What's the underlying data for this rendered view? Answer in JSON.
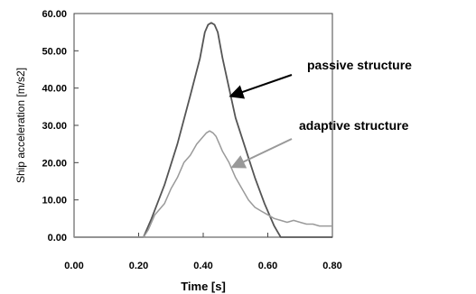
{
  "chart_data": {
    "type": "line",
    "xlabel": "Time [s]",
    "ylabel": "Ship acceleration [m/s2]",
    "xlim": [
      0,
      0.8
    ],
    "ylim": [
      0,
      60
    ],
    "x_ticks": [
      "0.00",
      "0.20",
      "0.40",
      "0.60",
      "0.80"
    ],
    "y_ticks": [
      "0.00",
      "10.00",
      "20.00",
      "30.00",
      "40.00",
      "50.00",
      "60.00"
    ],
    "grid": false,
    "series": [
      {
        "name": "passive structure",
        "color": "#555555",
        "points": [
          [
            0.0,
            0.0
          ],
          [
            0.1,
            0.0
          ],
          [
            0.2,
            0.0
          ],
          [
            0.215,
            0.0
          ],
          [
            0.24,
            5.0
          ],
          [
            0.28,
            14.0
          ],
          [
            0.32,
            25.0
          ],
          [
            0.36,
            38.0
          ],
          [
            0.39,
            48.0
          ],
          [
            0.405,
            55.0
          ],
          [
            0.415,
            57.0
          ],
          [
            0.425,
            57.5
          ],
          [
            0.435,
            57.0
          ],
          [
            0.445,
            55.0
          ],
          [
            0.46,
            48.0
          ],
          [
            0.48,
            40.0
          ],
          [
            0.5,
            32.0
          ],
          [
            0.53,
            24.0
          ],
          [
            0.56,
            16.0
          ],
          [
            0.59,
            9.0
          ],
          [
            0.62,
            3.0
          ],
          [
            0.64,
            0.0
          ],
          [
            0.7,
            0.0
          ],
          [
            0.8,
            0.0
          ]
        ]
      },
      {
        "name": "adaptive structure",
        "color": "#9a9a9a",
        "points": [
          [
            0.0,
            0.0
          ],
          [
            0.2,
            0.0
          ],
          [
            0.215,
            0.0
          ],
          [
            0.23,
            2.0
          ],
          [
            0.25,
            6.0
          ],
          [
            0.28,
            9.0
          ],
          [
            0.3,
            13.0
          ],
          [
            0.32,
            16.0
          ],
          [
            0.34,
            20.0
          ],
          [
            0.36,
            22.0
          ],
          [
            0.38,
            25.0
          ],
          [
            0.4,
            27.0
          ],
          [
            0.41,
            28.0
          ],
          [
            0.42,
            28.5
          ],
          [
            0.43,
            28.0
          ],
          [
            0.44,
            27.0
          ],
          [
            0.45,
            25.0
          ],
          [
            0.46,
            23.0
          ],
          [
            0.48,
            20.0
          ],
          [
            0.5,
            16.0
          ],
          [
            0.52,
            13.0
          ],
          [
            0.54,
            10.0
          ],
          [
            0.56,
            8.0
          ],
          [
            0.58,
            7.0
          ],
          [
            0.6,
            6.0
          ],
          [
            0.62,
            5.0
          ],
          [
            0.64,
            4.5
          ],
          [
            0.66,
            4.0
          ],
          [
            0.68,
            4.5
          ],
          [
            0.7,
            4.0
          ],
          [
            0.72,
            3.5
          ],
          [
            0.74,
            3.5
          ],
          [
            0.76,
            3.0
          ],
          [
            0.78,
            3.0
          ],
          [
            0.8,
            3.0
          ]
        ]
      }
    ],
    "annotations": [
      {
        "text": "passive structure",
        "series": 0,
        "arrow_color": "#000000",
        "arrow_to": [
          0.49,
          38.0
        ]
      },
      {
        "text": "adaptive structure",
        "series": 1,
        "arrow_color": "#999999",
        "arrow_to": [
          0.495,
          19.0
        ]
      }
    ]
  }
}
